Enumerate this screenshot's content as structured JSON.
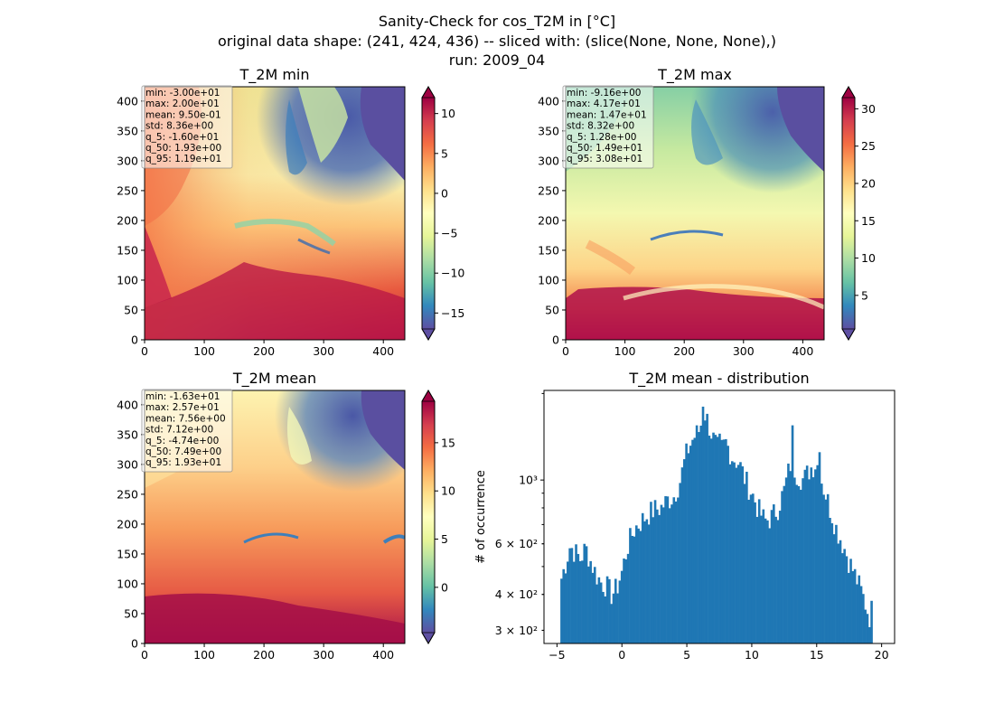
{
  "suptitle": {
    "line1": "Sanity-Check for cos_T2M in [°C]",
    "line2": "original data shape: (241, 424, 436) -- sliced with: (slice(None, None, None),)",
    "line3": "run: 2009_04"
  },
  "chart_data": [
    {
      "type": "heatmap",
      "title": "T_2M min",
      "xlim": [
        0,
        436
      ],
      "ylim": [
        0,
        424
      ],
      "xticks": [
        "0",
        "100",
        "200",
        "300",
        "400"
      ],
      "yticks": [
        "0",
        "50",
        "100",
        "150",
        "200",
        "250",
        "300",
        "350",
        "400"
      ],
      "colormap": "Spectral_r",
      "colorbar": {
        "range": [
          -17,
          12
        ],
        "ticks": [
          "−15",
          "−10",
          "−5",
          "0",
          "5",
          "10"
        ],
        "extend": "both"
      },
      "stats": [
        "min: -3.00e+01",
        "max: 2.00e+01",
        "mean: 9.50e-01",
        "std: 8.36e+00",
        "q_5: -1.60e+01",
        "q_50: 1.93e+00",
        "q_95: 1.19e+01"
      ]
    },
    {
      "type": "heatmap",
      "title": "T_2M max",
      "xlim": [
        0,
        436
      ],
      "ylim": [
        0,
        424
      ],
      "xticks": [
        "0",
        "100",
        "200",
        "300",
        "400"
      ],
      "yticks": [
        "0",
        "50",
        "100",
        "150",
        "200",
        "250",
        "300",
        "350",
        "400"
      ],
      "colormap": "Spectral_r",
      "colorbar": {
        "range": [
          0.5,
          31.5
        ],
        "ticks": [
          "5",
          "10",
          "15",
          "20",
          "25",
          "30"
        ],
        "extend": "both"
      },
      "stats": [
        "min: -9.16e+00",
        "max: 4.17e+01",
        "mean: 1.47e+01",
        "std: 8.32e+00",
        "q_5: 1.28e+00",
        "q_50: 1.49e+01",
        "q_95: 3.08e+01"
      ]
    },
    {
      "type": "heatmap",
      "title": "T_2M mean",
      "xlim": [
        0,
        436
      ],
      "ylim": [
        0,
        424
      ],
      "xticks": [
        "0",
        "100",
        "200",
        "300",
        "400"
      ],
      "yticks": [
        "0",
        "50",
        "100",
        "150",
        "200",
        "250",
        "300",
        "350",
        "400"
      ],
      "colormap": "Spectral_r",
      "colorbar": {
        "range": [
          -4.7,
          19.3
        ],
        "ticks": [
          "0",
          "5",
          "10",
          "15"
        ],
        "extend": "both"
      },
      "stats": [
        "min: -1.63e+01",
        "max: 2.57e+01",
        "mean: 7.56e+00",
        "std: 7.12e+00",
        "q_5: -4.74e+00",
        "q_50: 7.49e+00",
        "q_95: 1.93e+01"
      ]
    },
    {
      "type": "bar",
      "title": "T_2M mean - distribution",
      "ylabel": "# of occurrence",
      "yscale": "log",
      "xlim": [
        -6,
        21
      ],
      "ylim": [
        270,
        2050
      ],
      "xticks": [
        "−5",
        "0",
        "5",
        "10",
        "15",
        "20"
      ],
      "ytick_labels": [
        "3 × 10²",
        "4 × 10²",
        "6 × 10²",
        "10³"
      ],
      "ytick_values": [
        300,
        400,
        600,
        1000
      ],
      "bar_color": "#1f77b4",
      "range": [
        -4.74,
        19.3
      ],
      "profile": [
        [
          -4.74,
          440
        ],
        [
          -4.3,
          520
        ],
        [
          -4.0,
          590
        ],
        [
          -3.6,
          560
        ],
        [
          -3.2,
          530
        ],
        [
          -2.8,
          580
        ],
        [
          -2.4,
          520
        ],
        [
          -2.0,
          470
        ],
        [
          -1.6,
          440
        ],
        [
          -1.2,
          430
        ],
        [
          -0.8,
          400
        ],
        [
          -0.4,
          420
        ],
        [
          0.0,
          480
        ],
        [
          0.5,
          600
        ],
        [
          1.0,
          680
        ],
        [
          1.5,
          720
        ],
        [
          2.0,
          760
        ],
        [
          2.5,
          790
        ],
        [
          3.0,
          800
        ],
        [
          3.5,
          850
        ],
        [
          4.0,
          880
        ],
        [
          4.5,
          1000
        ],
        [
          5.0,
          1250
        ],
        [
          5.5,
          1400
        ],
        [
          6.0,
          1500
        ],
        [
          6.3,
          1750
        ],
        [
          6.7,
          1550
        ],
        [
          7.0,
          1400
        ],
        [
          7.5,
          1250
        ],
        [
          8.0,
          1350
        ],
        [
          8.5,
          1200
        ],
        [
          9.0,
          1150
        ],
        [
          9.5,
          1000
        ],
        [
          10.0,
          900
        ],
        [
          10.5,
          790
        ],
        [
          11.0,
          720
        ],
        [
          11.5,
          740
        ],
        [
          12.0,
          800
        ],
        [
          12.5,
          920
        ],
        [
          13.0,
          1150
        ],
        [
          13.5,
          1050
        ],
        [
          14.0,
          1000
        ],
        [
          14.5,
          1100
        ],
        [
          15.0,
          1150
        ],
        [
          15.5,
          950
        ],
        [
          16.0,
          800
        ],
        [
          16.5,
          680
        ],
        [
          17.0,
          600
        ],
        [
          17.5,
          520
        ],
        [
          18.0,
          460
        ],
        [
          18.5,
          400
        ],
        [
          19.0,
          340
        ],
        [
          19.3,
          320
        ]
      ],
      "spikes": [
        [
          6.2,
          1800
        ],
        [
          7.5,
          1450
        ],
        [
          13.1,
          1550
        ],
        [
          15.2,
          1250
        ],
        [
          19.2,
          380
        ]
      ]
    }
  ]
}
